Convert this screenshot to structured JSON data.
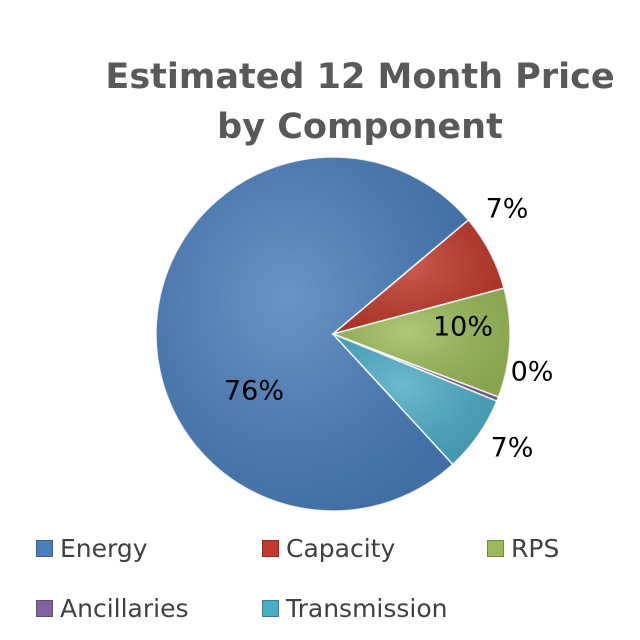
{
  "chart_data": {
    "type": "pie",
    "title": [
      "Estimated 12 Month Price",
      "by Component"
    ],
    "slices": [
      {
        "name": "Energy",
        "value": 76,
        "label": "76%",
        "color": "#4A7EBB"
      },
      {
        "name": "Capacity",
        "value": 7,
        "label": "7%",
        "color": "#C0392B"
      },
      {
        "name": "RPS",
        "value": 10,
        "label": "10%",
        "color": "#9BBB59"
      },
      {
        "name": "Ancillaries",
        "value": 0.4,
        "label": "0%",
        "color": "#8064A2"
      },
      {
        "name": "Transmission",
        "value": 7,
        "label": "7%",
        "color": "#4BACC6"
      }
    ],
    "legend_position": "bottom"
  }
}
